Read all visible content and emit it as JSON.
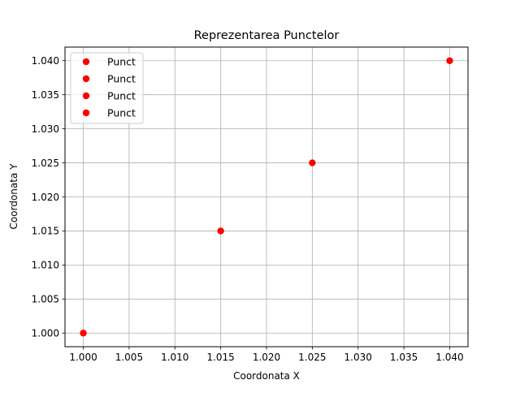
{
  "chart_data": {
    "type": "scatter",
    "title": "Reprezentarea Punctelor",
    "xlabel": "Coordonata X",
    "ylabel": "Coordonata Y",
    "xlim": [
      0.998,
      1.042
    ],
    "ylim": [
      0.998,
      1.042
    ],
    "xticks": [
      "1.000",
      "1.005",
      "1.010",
      "1.015",
      "1.020",
      "1.025",
      "1.030",
      "1.035",
      "1.040"
    ],
    "yticks": [
      "1.000",
      "1.005",
      "1.010",
      "1.015",
      "1.020",
      "1.025",
      "1.030",
      "1.035",
      "1.040"
    ],
    "grid": true,
    "legend_position": "upper-left",
    "series": [
      {
        "name": "Punct",
        "color": "#ff0000",
        "points": [
          {
            "x": 1.0,
            "y": 1.0
          }
        ]
      },
      {
        "name": "Punct",
        "color": "#ff0000",
        "points": [
          {
            "x": 1.015,
            "y": 1.015
          }
        ]
      },
      {
        "name": "Punct",
        "color": "#ff0000",
        "points": [
          {
            "x": 1.025,
            "y": 1.025
          }
        ]
      },
      {
        "name": "Punct",
        "color": "#ff0000",
        "points": [
          {
            "x": 1.04,
            "y": 1.04
          }
        ]
      }
    ]
  }
}
